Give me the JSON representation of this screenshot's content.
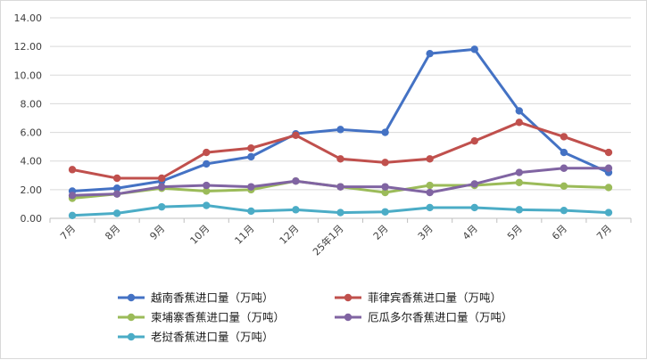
{
  "chart_data": {
    "type": "line",
    "title": "",
    "xlabel": "",
    "ylabel": "",
    "categories": [
      "7月",
      "8月",
      "9月",
      "10月",
      "11月",
      "12月",
      "25年1月",
      "2月",
      "3月",
      "4月",
      "5月",
      "6月",
      "7月"
    ],
    "yticks": [
      "0.00",
      "2.00",
      "4.00",
      "6.00",
      "8.00",
      "10.00",
      "12.00",
      "14.00"
    ],
    "ylim": [
      0,
      14
    ],
    "grid": true,
    "legend_position": "bottom",
    "series": [
      {
        "name": "越南香蕉进口量（万吨）",
        "color": "#4472c4",
        "values": [
          1.9,
          2.1,
          2.6,
          3.8,
          4.3,
          5.9,
          6.2,
          6.0,
          11.5,
          11.8,
          7.5,
          4.6,
          3.2
        ]
      },
      {
        "name": "菲律宾香蕉进口量（万吨）",
        "color": "#c0504d",
        "values": [
          3.4,
          2.8,
          2.8,
          4.6,
          4.9,
          5.8,
          4.15,
          3.9,
          4.15,
          5.4,
          6.7,
          5.7,
          4.6
        ]
      },
      {
        "name": "柬埔寨香蕉进口量（万吨）",
        "color": "#9bbb59",
        "values": [
          1.4,
          1.7,
          2.1,
          1.9,
          2.0,
          2.6,
          2.2,
          1.8,
          2.3,
          2.3,
          2.5,
          2.25,
          2.15
        ]
      },
      {
        "name": "厄瓜多尔香蕉进口量（万吨）",
        "color": "#8064a2",
        "values": [
          1.6,
          1.7,
          2.2,
          2.3,
          2.2,
          2.6,
          2.2,
          2.2,
          1.8,
          2.4,
          3.2,
          3.5,
          3.5
        ]
      },
      {
        "name": "老挝香蕉进口量（万吨）",
        "color": "#4bacc6",
        "values": [
          0.2,
          0.35,
          0.8,
          0.9,
          0.5,
          0.6,
          0.4,
          0.45,
          0.75,
          0.75,
          0.6,
          0.55,
          0.4
        ]
      }
    ]
  }
}
